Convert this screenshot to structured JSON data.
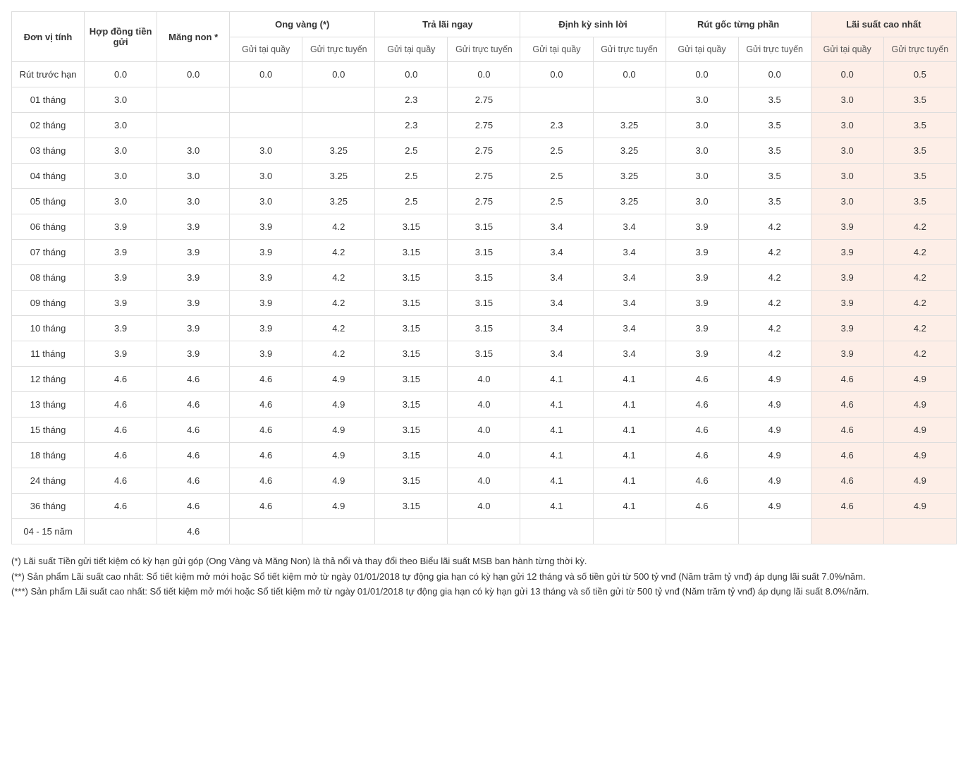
{
  "table": {
    "highlight_bg": "#fdeee7",
    "border_color": "#dddddd",
    "header_row1": {
      "unit": "Đơn vị tính",
      "hopdong": "Hợp đồng tiền gửi",
      "mangnon": "Măng non *",
      "ongvang": "Ong vàng (*)",
      "tralai": "Trả lãi ngay",
      "dinhky": "Định kỳ sinh lời",
      "rutgoc": "Rút gốc từng phần",
      "laisuat": "Lãi suất cao nhất"
    },
    "sub_labels": {
      "quay": "Gửi tại quầy",
      "tuyen": "Gửi trực tuyến"
    },
    "rows": [
      {
        "label": "Rút trước hạn",
        "hopdong": "0.0",
        "mangnon": "0.0",
        "ov_q": "0.0",
        "ov_t": "0.0",
        "tl_q": "0.0",
        "tl_t": "0.0",
        "dk_q": "0.0",
        "dk_t": "0.0",
        "rg_q": "0.0",
        "rg_t": "0.0",
        "ls_q": "0.0",
        "ls_t": "0.5"
      },
      {
        "label": "01 tháng",
        "hopdong": "3.0",
        "mangnon": "",
        "ov_q": "",
        "ov_t": "",
        "tl_q": "2.3",
        "tl_t": "2.75",
        "dk_q": "",
        "dk_t": "",
        "rg_q": "3.0",
        "rg_t": "3.5",
        "ls_q": "3.0",
        "ls_t": "3.5"
      },
      {
        "label": "02 tháng",
        "hopdong": "3.0",
        "mangnon": "",
        "ov_q": "",
        "ov_t": "",
        "tl_q": "2.3",
        "tl_t": "2.75",
        "dk_q": "2.3",
        "dk_t": "3.25",
        "rg_q": "3.0",
        "rg_t": "3.5",
        "ls_q": "3.0",
        "ls_t": "3.5"
      },
      {
        "label": "03 tháng",
        "hopdong": "3.0",
        "mangnon": "3.0",
        "ov_q": "3.0",
        "ov_t": "3.25",
        "tl_q": "2.5",
        "tl_t": "2.75",
        "dk_q": "2.5",
        "dk_t": "3.25",
        "rg_q": "3.0",
        "rg_t": "3.5",
        "ls_q": "3.0",
        "ls_t": "3.5"
      },
      {
        "label": "04 tháng",
        "hopdong": "3.0",
        "mangnon": "3.0",
        "ov_q": "3.0",
        "ov_t": "3.25",
        "tl_q": "2.5",
        "tl_t": "2.75",
        "dk_q": "2.5",
        "dk_t": "3.25",
        "rg_q": "3.0",
        "rg_t": "3.5",
        "ls_q": "3.0",
        "ls_t": "3.5"
      },
      {
        "label": "05 tháng",
        "hopdong": "3.0",
        "mangnon": "3.0",
        "ov_q": "3.0",
        "ov_t": "3.25",
        "tl_q": "2.5",
        "tl_t": "2.75",
        "dk_q": "2.5",
        "dk_t": "3.25",
        "rg_q": "3.0",
        "rg_t": "3.5",
        "ls_q": "3.0",
        "ls_t": "3.5"
      },
      {
        "label": "06 tháng",
        "hopdong": "3.9",
        "mangnon": "3.9",
        "ov_q": "3.9",
        "ov_t": "4.2",
        "tl_q": "3.15",
        "tl_t": "3.15",
        "dk_q": "3.4",
        "dk_t": "3.4",
        "rg_q": "3.9",
        "rg_t": "4.2",
        "ls_q": "3.9",
        "ls_t": "4.2"
      },
      {
        "label": "07 tháng",
        "hopdong": "3.9",
        "mangnon": "3.9",
        "ov_q": "3.9",
        "ov_t": "4.2",
        "tl_q": "3.15",
        "tl_t": "3.15",
        "dk_q": "3.4",
        "dk_t": "3.4",
        "rg_q": "3.9",
        "rg_t": "4.2",
        "ls_q": "3.9",
        "ls_t": "4.2"
      },
      {
        "label": "08 tháng",
        "hopdong": "3.9",
        "mangnon": "3.9",
        "ov_q": "3.9",
        "ov_t": "4.2",
        "tl_q": "3.15",
        "tl_t": "3.15",
        "dk_q": "3.4",
        "dk_t": "3.4",
        "rg_q": "3.9",
        "rg_t": "4.2",
        "ls_q": "3.9",
        "ls_t": "4.2"
      },
      {
        "label": "09 tháng",
        "hopdong": "3.9",
        "mangnon": "3.9",
        "ov_q": "3.9",
        "ov_t": "4.2",
        "tl_q": "3.15",
        "tl_t": "3.15",
        "dk_q": "3.4",
        "dk_t": "3.4",
        "rg_q": "3.9",
        "rg_t": "4.2",
        "ls_q": "3.9",
        "ls_t": "4.2"
      },
      {
        "label": "10 tháng",
        "hopdong": "3.9",
        "mangnon": "3.9",
        "ov_q": "3.9",
        "ov_t": "4.2",
        "tl_q": "3.15",
        "tl_t": "3.15",
        "dk_q": "3.4",
        "dk_t": "3.4",
        "rg_q": "3.9",
        "rg_t": "4.2",
        "ls_q": "3.9",
        "ls_t": "4.2"
      },
      {
        "label": "11 tháng",
        "hopdong": "3.9",
        "mangnon": "3.9",
        "ov_q": "3.9",
        "ov_t": "4.2",
        "tl_q": "3.15",
        "tl_t": "3.15",
        "dk_q": "3.4",
        "dk_t": "3.4",
        "rg_q": "3.9",
        "rg_t": "4.2",
        "ls_q": "3.9",
        "ls_t": "4.2"
      },
      {
        "label": "12 tháng",
        "hopdong": "4.6",
        "mangnon": "4.6",
        "ov_q": "4.6",
        "ov_t": "4.9",
        "tl_q": "3.15",
        "tl_t": "4.0",
        "dk_q": "4.1",
        "dk_t": "4.1",
        "rg_q": "4.6",
        "rg_t": "4.9",
        "ls_q": "4.6",
        "ls_t": "4.9"
      },
      {
        "label": "13 tháng",
        "hopdong": "4.6",
        "mangnon": "4.6",
        "ov_q": "4.6",
        "ov_t": "4.9",
        "tl_q": "3.15",
        "tl_t": "4.0",
        "dk_q": "4.1",
        "dk_t": "4.1",
        "rg_q": "4.6",
        "rg_t": "4.9",
        "ls_q": "4.6",
        "ls_t": "4.9"
      },
      {
        "label": "15 tháng",
        "hopdong": "4.6",
        "mangnon": "4.6",
        "ov_q": "4.6",
        "ov_t": "4.9",
        "tl_q": "3.15",
        "tl_t": "4.0",
        "dk_q": "4.1",
        "dk_t": "4.1",
        "rg_q": "4.6",
        "rg_t": "4.9",
        "ls_q": "4.6",
        "ls_t": "4.9"
      },
      {
        "label": "18 tháng",
        "hopdong": "4.6",
        "mangnon": "4.6",
        "ov_q": "4.6",
        "ov_t": "4.9",
        "tl_q": "3.15",
        "tl_t": "4.0",
        "dk_q": "4.1",
        "dk_t": "4.1",
        "rg_q": "4.6",
        "rg_t": "4.9",
        "ls_q": "4.6",
        "ls_t": "4.9"
      },
      {
        "label": "24 tháng",
        "hopdong": "4.6",
        "mangnon": "4.6",
        "ov_q": "4.6",
        "ov_t": "4.9",
        "tl_q": "3.15",
        "tl_t": "4.0",
        "dk_q": "4.1",
        "dk_t": "4.1",
        "rg_q": "4.6",
        "rg_t": "4.9",
        "ls_q": "4.6",
        "ls_t": "4.9"
      },
      {
        "label": "36 tháng",
        "hopdong": "4.6",
        "mangnon": "4.6",
        "ov_q": "4.6",
        "ov_t": "4.9",
        "tl_q": "3.15",
        "tl_t": "4.0",
        "dk_q": "4.1",
        "dk_t": "4.1",
        "rg_q": "4.6",
        "rg_t": "4.9",
        "ls_q": "4.6",
        "ls_t": "4.9"
      },
      {
        "label": "04 - 15 năm",
        "hopdong": "",
        "mangnon": "4.6",
        "ov_q": "",
        "ov_t": "",
        "tl_q": "",
        "tl_t": "",
        "dk_q": "",
        "dk_t": "",
        "rg_q": "",
        "rg_t": "",
        "ls_q": "",
        "ls_t": ""
      }
    ]
  },
  "notes": {
    "n1": "(*) Lãi suất Tiền gửi tiết kiệm có kỳ hạn gửi góp (Ong Vàng và Măng Non) là thả nổi và thay đổi theo Biểu lãi suất MSB ban hành từng thời kỳ.",
    "n2": "(**) Sản phẩm Lãi suất cao nhất: Sổ tiết kiệm mở mới hoặc Sổ tiết kiệm mở từ ngày 01/01/2018 tự động gia hạn có kỳ hạn gửi 12 tháng và số tiền gửi từ 500 tỷ vnđ (Năm trăm tỷ vnđ) áp dụng lãi suất 7.0%/năm.",
    "n3": "(***) Sản phẩm Lãi suất cao nhất: Sổ tiết kiệm mở mới hoặc Sổ tiết kiệm mở từ ngày 01/01/2018 tự động gia hạn có kỳ hạn gửi 13 tháng và số tiền gửi từ 500 tỷ vnđ (Năm trăm tỷ vnđ) áp dụng lãi suất 8.0%/năm."
  }
}
